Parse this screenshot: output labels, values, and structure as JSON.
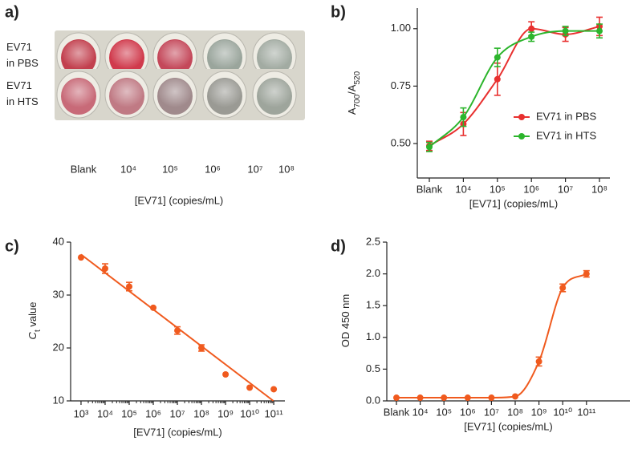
{
  "chart_data": [
    {
      "type": "image",
      "panel_label": "a)",
      "row_labels": [
        [
          "EV71",
          "in PBS"
        ],
        [
          "EV71",
          "in HTS"
        ]
      ],
      "categories": [
        "Blank",
        "10⁴",
        "10⁵",
        "10⁶",
        "10⁷",
        "10⁸"
      ],
      "x_label": "[EV71] (copies/mL)"
    },
    {
      "type": "line",
      "panel_label": "b)",
      "categories": [
        "Blank",
        "10⁴",
        "10⁵",
        "10⁶",
        "10⁷",
        "10⁸"
      ],
      "x_label": "[EV71] (copies/mL)",
      "y_label": [
        "A",
        "700",
        "/A",
        "520"
      ],
      "ylim": [
        0.35,
        1.09
      ],
      "yticks": [
        {
          "value": 0.5,
          "label": "0.50"
        },
        {
          "value": 0.75,
          "label": "0.75"
        },
        {
          "value": 1,
          "label": "1.00"
        }
      ],
      "legend": "right",
      "series": [
        {
          "name": "EV71 in PBS",
          "color": "#e8302f",
          "values": [
            0.49,
            0.585,
            0.78,
            1.0,
            0.975,
            1.01
          ],
          "errors": [
            0.02,
            0.05,
            0.07,
            0.03,
            0.03,
            0.04
          ]
        },
        {
          "name": "EV71 in HTS",
          "color": "#2cb52c",
          "values": [
            0.485,
            0.615,
            0.875,
            0.965,
            0.99,
            0.99
          ],
          "errors": [
            0.02,
            0.04,
            0.04,
            0.02,
            0.02,
            0.03
          ]
        }
      ]
    },
    {
      "type": "scatter",
      "panel_label": "c)",
      "x_label": "[EV71] (copies/mL)",
      "y_label": [
        "C",
        "t",
        " value"
      ],
      "log_x": true,
      "xlim": [
        370,
        290000000000
      ],
      "xticks": [
        {
          "value": 1000,
          "label": "10³"
        },
        {
          "value": 10000,
          "label": "10⁴"
        },
        {
          "value": 100000,
          "label": "10⁵"
        },
        {
          "value": 1000000,
          "label": "10⁶"
        },
        {
          "value": 10000000,
          "label": "10⁷"
        },
        {
          "value": 100000000,
          "label": "10⁸"
        },
        {
          "value": 1000000000,
          "label": "10⁹"
        },
        {
          "value": 10000000000,
          "label": "10¹⁰"
        },
        {
          "value": 100000000000,
          "label": "10¹¹"
        }
      ],
      "ylim": [
        10,
        40
      ],
      "yticks": [
        10,
        20,
        30,
        40
      ],
      "color": "#f05a1e",
      "x": [
        1000,
        10000,
        100000,
        1000000,
        10000000,
        100000000,
        1000000000,
        10000000000,
        100000000000
      ],
      "values": [
        37.1,
        35,
        31.6,
        27.6,
        23.3,
        20,
        15,
        12.5,
        12.2
      ],
      "errors": [
        0,
        0.9,
        0.8,
        0,
        0.7,
        0.6,
        0,
        0,
        0
      ]
    },
    {
      "type": "line",
      "panel_label": "d)",
      "categories": [
        "Blank",
        "10⁴",
        "10⁵",
        "10⁶",
        "10⁷",
        "10⁸",
        "10⁹",
        "10¹⁰",
        "10¹¹"
      ],
      "x_label": "[EV71] (copies/mL)",
      "y_label": [
        "OD 450 nm"
      ],
      "ylim": [
        0,
        2.5
      ],
      "yticks": [
        {
          "value": 0,
          "label": "0.0"
        },
        {
          "value": 0.5,
          "label": "0.5"
        },
        {
          "value": 1,
          "label": "1.0"
        },
        {
          "value": 1.5,
          "label": "1.5"
        },
        {
          "value": 2,
          "label": "2.0"
        },
        {
          "value": 2.5,
          "label": "2.5"
        }
      ],
      "series": [
        {
          "color": "#f05a1e",
          "values": [
            0.05,
            0.05,
            0.05,
            0.05,
            0.05,
            0.07,
            0.62,
            1.78,
            2.0
          ],
          "errors": [
            0,
            0,
            0,
            0,
            0,
            0,
            0.07,
            0.06,
            0.05
          ]
        }
      ]
    }
  ]
}
